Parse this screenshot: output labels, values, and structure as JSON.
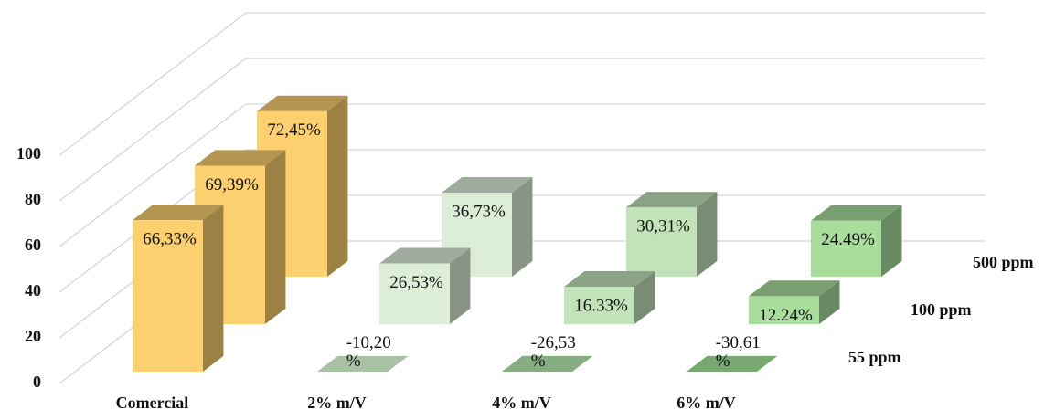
{
  "chart_data": {
    "type": "bar3d",
    "categories": [
      "Comercial",
      "2% m/V",
      "4% m/V",
      "6% m/V"
    ],
    "series": [
      {
        "name": "55 ppm",
        "colors": [
          "#fcd06f",
          "#a9c2a5",
          "#86ad82",
          "#76a870"
        ],
        "values": [
          66.33,
          -10.2,
          -26.53,
          -30.61
        ],
        "value_labels": [
          "66,33%",
          "-10,20 %",
          "-26,53 %",
          "-30,61 %"
        ]
      },
      {
        "name": "100 ppm",
        "colors": [
          "#fcd06f",
          "#ddeed8",
          "#c2e3ba",
          "#a8dd9c"
        ],
        "values": [
          69.39,
          26.53,
          16.33,
          12.24
        ],
        "value_labels": [
          "69,39%",
          "26,53%",
          "16.33%",
          "12.24%"
        ]
      },
      {
        "name": "500 ppm",
        "colors": [
          "#fcd06f",
          "#ddeed8",
          "#c2e3ba",
          "#a8dd9c"
        ],
        "values": [
          72.45,
          36.73,
          30.31,
          24.49
        ],
        "value_labels": [
          "72,45%",
          "36,73%",
          "30,31%",
          "24.49%"
        ]
      }
    ],
    "ylim": [
      0,
      100
    ],
    "yticks": [
      0,
      20,
      40,
      60,
      80,
      100
    ],
    "grid": true
  }
}
